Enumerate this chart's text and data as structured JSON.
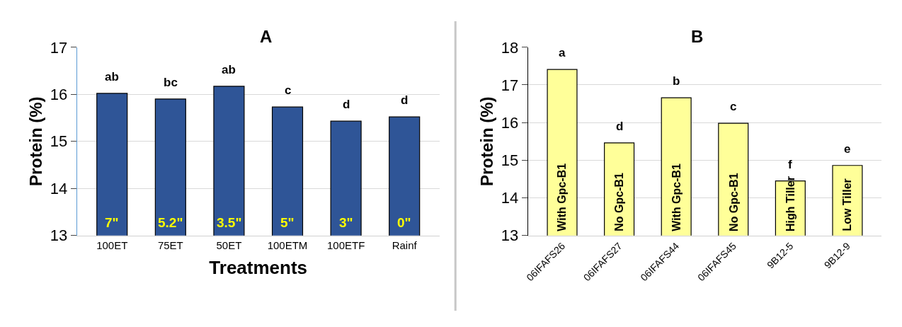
{
  "chart_data": [
    {
      "type": "bar",
      "title": "A",
      "xlabel": "Treatments",
      "ylabel": "Protein (%)",
      "categories": [
        "100ET",
        "75ET",
        "50ET",
        "100ETM",
        "100ETF",
        "Rainf"
      ],
      "series": [
        {
          "color": "#2f5597",
          "values": [
            16.02,
            15.9,
            16.17,
            15.73,
            15.43,
            15.52
          ]
        }
      ],
      "ylim": [
        13,
        17
      ],
      "yticks": [
        13,
        14,
        15,
        16,
        17
      ],
      "grid": "y",
      "annotations": [
        {
          "text": "ab",
          "x": "100ET",
          "y": 16.02
        },
        {
          "text": "bc",
          "x": "75ET",
          "y": 15.9
        },
        {
          "text": "ab",
          "x": "50ET",
          "y": 16.17
        },
        {
          "text": "c",
          "x": "100ETM",
          "y": 15.73
        },
        {
          "text": "d",
          "x": "100ETF",
          "y": 15.43
        },
        {
          "text": "d",
          "x": "Rainf",
          "y": 15.52
        },
        "7\"",
        "5.2\"",
        "3.5\"",
        "5\"",
        "3\"",
        "0\""
      ]
    },
    {
      "type": "bar",
      "title": "B",
      "ylabel": "Protein (%)",
      "categories": [
        "06IFAFS26",
        "06IFAFS27",
        "06IFAFS44",
        "06IFAFS45",
        "9B12-5",
        "9B12-9"
      ],
      "series": [
        {
          "color": "#ffff99",
          "values": [
            17.41,
            15.46,
            16.66,
            15.98,
            14.45,
            14.86
          ]
        }
      ],
      "ylim": [
        13,
        18
      ],
      "yticks": [
        13,
        14,
        15,
        16,
        17,
        18
      ],
      "grid": "y",
      "annotations": [
        {
          "text": "a",
          "x": "06IFAFS26",
          "y": 17.41
        },
        {
          "text": "d",
          "x": "06IFAFS27",
          "y": 15.46
        },
        {
          "text": "b",
          "x": "06IFAFS44",
          "y": 16.66
        },
        {
          "text": "c",
          "x": "06IFAFS45",
          "y": 15.98
        },
        {
          "text": "f",
          "x": "9B12-5",
          "y": 14.45
        },
        {
          "text": "e",
          "x": "9B12-9",
          "y": 14.86
        },
        "With Gpc-B1",
        "No Gpc-B1",
        "With Gpc-B1",
        "No Gpc-B1",
        "High Tiller",
        "Low Tiller"
      ]
    }
  ]
}
